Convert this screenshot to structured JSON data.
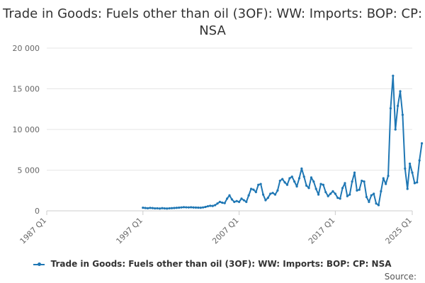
{
  "chart_data": {
    "type": "line",
    "title": "Trade in Goods: Fuels other than oil (3OF): WW: Imports: BOP: CP: NSA",
    "xlabel": "",
    "ylabel": "",
    "ylim": [
      0,
      20000
    ],
    "yticks": [
      0,
      5000,
      10000,
      15000,
      20000
    ],
    "ytick_labels": [
      "0",
      "5 000",
      "10 000",
      "15 000",
      "20 000"
    ],
    "xlim_quarter_index": [
      0,
      152
    ],
    "xtick_labels": [
      "1987 Q1",
      "1997 Q1",
      "2007 Q1",
      "2017 Q1",
      "2025 Q1"
    ],
    "xtick_quarter_index": [
      0,
      40,
      80,
      120,
      152
    ],
    "start_quarter": "1997 Q1",
    "series": [
      {
        "name": "Trade in Goods: Fuels other than oil (3OF): WW: Imports: BOP: CP: NSA",
        "color": "#1f77b4",
        "values": [
          380,
          350,
          320,
          360,
          340,
          300,
          310,
          280,
          330,
          300,
          280,
          310,
          330,
          350,
          370,
          390,
          420,
          450,
          430,
          420,
          440,
          410,
          400,
          390,
          380,
          420,
          480,
          560,
          620,
          600,
          700,
          900,
          1100,
          1000,
          950,
          1500,
          1900,
          1400,
          1100,
          1200,
          1100,
          1500,
          1300,
          1100,
          1900,
          2700,
          2600,
          2300,
          3200,
          3300,
          2000,
          1300,
          1600,
          2100,
          2200,
          2000,
          2500,
          3700,
          3900,
          3500,
          3200,
          4000,
          4200,
          3600,
          3000,
          4000,
          5200,
          4200,
          3100,
          2800,
          4100,
          3600,
          2700,
          2000,
          3300,
          3200,
          2300,
          1800,
          2100,
          2400,
          2100,
          1600,
          1500,
          2800,
          3400,
          1800,
          2000,
          3600,
          4700,
          2500,
          2600,
          3700,
          3600,
          1700,
          1100,
          1900,
          2100,
          900,
          700,
          2400,
          4000,
          3300,
          4300,
          12600,
          16600,
          10000,
          12900,
          14700,
          11800,
          5200,
          2700,
          5800,
          4700,
          3400,
          3500,
          6200,
          8300
        ]
      }
    ]
  },
  "legend": {
    "label": "Trade in Goods: Fuels other than oil (3OF): WW: Imports: BOP: CP: NSA"
  },
  "source": {
    "label": "Source:"
  }
}
